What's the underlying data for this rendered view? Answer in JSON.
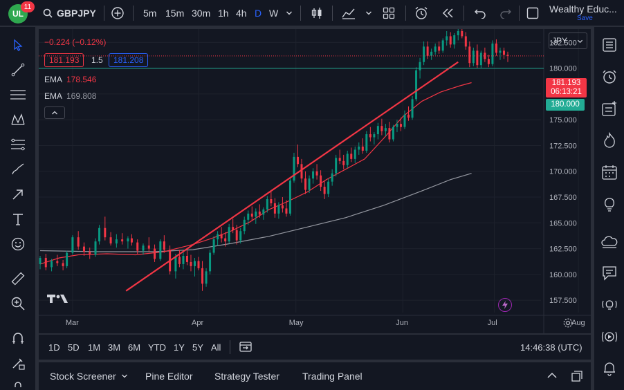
{
  "header": {
    "logo_text": "UL",
    "notification_count": "11",
    "symbol": "GBPJPY",
    "timeframes": [
      "5m",
      "15m",
      "30m",
      "1h",
      "4h",
      "D",
      "W"
    ],
    "active_timeframe": "D",
    "account_name": "Wealthy Educ...",
    "save_label": "Save"
  },
  "legend": {
    "change": "−0.224 (−0.12%)",
    "bid": "181.193",
    "spread": "1.5",
    "ask": "181.208",
    "ema1_label": "EMA",
    "ema1_value": "178.546",
    "ema2_label": "EMA",
    "ema2_value": "169.808"
  },
  "currency_selector": "JPY",
  "price_labels": {
    "last_price": "181.193",
    "countdown": "06:13:21",
    "hline_price": "180.000"
  },
  "colors": {
    "up": "#089981",
    "down": "#f23645",
    "ema_fast": "#f23645",
    "ema_slow": "#9598a1",
    "hline": "#22ab94",
    "trendline": "#f23645",
    "accent": "#2962ff"
  },
  "bottom_timeframes": [
    "1D",
    "5D",
    "1M",
    "3M",
    "6M",
    "YTD",
    "1Y",
    "5Y",
    "All"
  ],
  "clock": "14:46:38 (UTC)",
  "panel_tabs": [
    "Stock Screener",
    "Pine Editor",
    "Strategy Tester",
    "Trading Panel"
  ],
  "chart_data": {
    "type": "candlestick",
    "title": "GBPJPY",
    "ylabel": "",
    "xlabel": "",
    "ylim": [
      156.3,
      183.8
    ],
    "y_ticks": [
      "182.500",
      "180.000",
      "177.500",
      "175.000",
      "172.500",
      "170.000",
      "167.500",
      "165.000",
      "162.500",
      "160.000",
      "157.500"
    ],
    "x_ticks": [
      "Mar",
      "Apr",
      "May",
      "Jun",
      "Jul",
      "Aug"
    ],
    "horizontal_line": 180.0,
    "dotted_last_price": 181.193,
    "ema_fast_points": [
      [
        0,
        161.0
      ],
      [
        10,
        161.6
      ],
      [
        20,
        161.9
      ],
      [
        35,
        162.0
      ],
      [
        50,
        161.9
      ],
      [
        65,
        162.2
      ],
      [
        80,
        162.9
      ],
      [
        90,
        163.5
      ],
      [
        100,
        164.2
      ],
      [
        110,
        165.1
      ],
      [
        120,
        166.3
      ],
      [
        130,
        167.1
      ],
      [
        140,
        168.0
      ],
      [
        150,
        169.2
      ],
      [
        160,
        170.2
      ],
      [
        170,
        171.2
      ],
      [
        180,
        173.2
      ],
      [
        190,
        175.3
      ],
      [
        200,
        176.8
      ],
      [
        210,
        177.7
      ],
      [
        220,
        178.3
      ],
      [
        226,
        178.6
      ]
    ],
    "ema_slow_points": [
      [
        0,
        162.3
      ],
      [
        30,
        162.2
      ],
      [
        60,
        162.2
      ],
      [
        80,
        162.4
      ],
      [
        100,
        163.0
      ],
      [
        120,
        163.7
      ],
      [
        140,
        164.6
      ],
      [
        160,
        165.5
      ],
      [
        180,
        166.7
      ],
      [
        200,
        168.1
      ],
      [
        215,
        169.2
      ],
      [
        226,
        169.8
      ]
    ],
    "trendline": [
      [
        45,
        158.4
      ],
      [
        219,
        180.6
      ]
    ],
    "candles": [
      [
        161.0,
        161.8,
        160.5,
        161.6
      ],
      [
        161.6,
        162.0,
        160.4,
        160.7
      ],
      [
        160.7,
        161.5,
        160.3,
        161.3
      ],
      [
        161.3,
        161.9,
        160.8,
        161.1
      ],
      [
        161.1,
        161.4,
        160.4,
        160.8
      ],
      [
        160.8,
        162.3,
        160.6,
        162.1
      ],
      [
        162.1,
        163.8,
        161.9,
        163.6
      ],
      [
        163.6,
        164.2,
        162.4,
        162.7
      ],
      [
        162.7,
        163.1,
        161.8,
        162.2
      ],
      [
        162.2,
        162.6,
        161.5,
        161.9
      ],
      [
        161.9,
        163.5,
        161.7,
        163.2
      ],
      [
        163.2,
        164.8,
        162.9,
        164.5
      ],
      [
        164.5,
        165.6,
        163.3,
        163.6
      ],
      [
        163.6,
        164.1,
        162.8,
        163.0
      ],
      [
        163.0,
        163.9,
        162.6,
        163.4
      ],
      [
        163.4,
        164.0,
        162.9,
        163.2
      ],
      [
        163.2,
        163.7,
        162.5,
        163.5
      ],
      [
        163.5,
        163.9,
        162.8,
        163.1
      ],
      [
        163.1,
        163.4,
        162.0,
        162.3
      ],
      [
        162.3,
        163.0,
        161.9,
        162.8
      ],
      [
        162.8,
        163.6,
        162.2,
        162.5
      ],
      [
        162.5,
        162.9,
        161.2,
        161.5
      ],
      [
        161.5,
        163.4,
        161.3,
        163.2
      ],
      [
        163.2,
        163.8,
        162.1,
        162.4
      ],
      [
        162.4,
        162.8,
        160.0,
        160.3
      ],
      [
        160.3,
        162.0,
        159.6,
        161.7
      ],
      [
        161.7,
        162.4,
        160.7,
        161.0
      ],
      [
        161.0,
        162.2,
        160.5,
        161.8
      ],
      [
        161.8,
        162.3,
        160.9,
        161.2
      ],
      [
        161.2,
        161.9,
        160.3,
        160.8
      ],
      [
        160.8,
        161.6,
        159.8,
        161.3
      ],
      [
        161.3,
        161.7,
        160.4,
        160.6
      ],
      [
        160.6,
        161.3,
        158.4,
        159.1
      ],
      [
        159.1,
        160.6,
        158.8,
        160.3
      ],
      [
        160.3,
        162.4,
        160.0,
        162.1
      ],
      [
        162.1,
        163.7,
        161.9,
        163.4
      ],
      [
        163.4,
        164.2,
        162.8,
        163.9
      ],
      [
        163.9,
        164.6,
        163.1,
        163.5
      ],
      [
        163.5,
        164.1,
        162.7,
        163.2
      ],
      [
        163.2,
        164.9,
        163.0,
        164.6
      ],
      [
        164.6,
        165.4,
        164.0,
        164.3
      ],
      [
        164.3,
        164.8,
        162.9,
        163.3
      ],
      [
        163.3,
        164.5,
        163.0,
        164.2
      ],
      [
        164.2,
        165.6,
        163.9,
        165.3
      ],
      [
        165.3,
        166.2,
        164.8,
        165.9
      ],
      [
        165.9,
        166.6,
        165.2,
        165.6
      ],
      [
        165.6,
        166.4,
        164.9,
        166.1
      ],
      [
        166.1,
        166.8,
        165.5,
        165.8
      ],
      [
        165.8,
        166.5,
        165.3,
        166.3
      ],
      [
        166.3,
        167.6,
        166.0,
        167.3
      ],
      [
        167.3,
        168.0,
        166.6,
        166.9
      ],
      [
        166.9,
        167.4,
        165.5,
        165.9
      ],
      [
        165.9,
        167.0,
        165.4,
        166.7
      ],
      [
        166.7,
        167.5,
        166.0,
        166.4
      ],
      [
        166.4,
        167.2,
        165.6,
        165.9
      ],
      [
        165.9,
        169.4,
        165.7,
        169.1
      ],
      [
        169.1,
        171.8,
        168.9,
        171.4
      ],
      [
        171.4,
        172.6,
        170.4,
        170.7
      ],
      [
        170.7,
        171.2,
        168.9,
        169.3
      ],
      [
        169.3,
        170.0,
        167.8,
        168.2
      ],
      [
        168.2,
        169.6,
        167.9,
        169.3
      ],
      [
        169.3,
        170.3,
        168.8,
        170.0
      ],
      [
        170.0,
        170.7,
        169.2,
        169.6
      ],
      [
        169.6,
        170.1,
        168.1,
        168.5
      ],
      [
        168.5,
        169.1,
        167.3,
        167.8
      ],
      [
        167.8,
        169.3,
        167.5,
        169.0
      ],
      [
        169.0,
        170.2,
        168.6,
        169.8
      ],
      [
        169.8,
        171.6,
        169.5,
        171.3
      ],
      [
        171.3,
        172.1,
        170.7,
        171.0
      ],
      [
        171.0,
        171.6,
        170.2,
        170.6
      ],
      [
        170.6,
        172.0,
        170.3,
        171.7
      ],
      [
        171.7,
        172.3,
        170.9,
        171.2
      ],
      [
        171.2,
        172.4,
        170.8,
        172.1
      ],
      [
        172.1,
        172.8,
        171.6,
        172.4
      ],
      [
        172.4,
        173.2,
        171.7,
        172.0
      ],
      [
        172.0,
        173.9,
        171.8,
        173.6
      ],
      [
        173.6,
        174.3,
        172.9,
        173.3
      ],
      [
        173.3,
        173.8,
        172.6,
        173.6
      ],
      [
        173.6,
        174.7,
        173.1,
        174.4
      ],
      [
        174.4,
        175.1,
        173.5,
        173.9
      ],
      [
        173.9,
        174.6,
        173.4,
        174.2
      ],
      [
        174.2,
        174.8,
        172.8,
        173.1
      ],
      [
        173.1,
        174.5,
        172.9,
        174.3
      ],
      [
        174.3,
        175.0,
        173.8,
        174.6
      ],
      [
        174.6,
        175.2,
        173.9,
        174.3
      ],
      [
        174.3,
        175.9,
        174.1,
        175.5
      ],
      [
        175.5,
        176.3,
        174.9,
        175.2
      ],
      [
        175.2,
        177.3,
        175.0,
        177.0
      ],
      [
        177.0,
        180.1,
        176.8,
        179.8
      ],
      [
        179.8,
        181.0,
        179.0,
        180.6
      ],
      [
        180.6,
        182.6,
        180.3,
        182.1
      ],
      [
        182.1,
        182.6,
        180.9,
        181.2
      ],
      [
        181.2,
        181.9,
        180.8,
        181.6
      ],
      [
        181.6,
        182.4,
        181.3,
        182.1
      ],
      [
        182.1,
        182.6,
        181.4,
        181.7
      ],
      [
        181.7,
        182.9,
        181.5,
        182.7
      ],
      [
        182.7,
        183.6,
        182.2,
        183.1
      ],
      [
        183.1,
        183.5,
        182.0,
        182.3
      ],
      [
        182.3,
        183.4,
        181.9,
        183.2
      ],
      [
        183.2,
        183.8,
        182.7,
        183.6
      ],
      [
        183.6,
        183.9,
        182.9,
        183.1
      ],
      [
        183.1,
        183.5,
        181.8,
        182.1
      ],
      [
        182.1,
        182.6,
        180.1,
        180.5
      ],
      [
        180.5,
        182.0,
        180.2,
        181.7
      ],
      [
        181.7,
        182.3,
        180.0,
        180.3
      ],
      [
        180.3,
        181.7,
        180.0,
        181.5
      ],
      [
        181.5,
        182.0,
        180.6,
        180.9
      ],
      [
        180.9,
        181.3,
        180.1,
        180.4
      ],
      [
        180.4,
        182.7,
        180.2,
        182.4
      ],
      [
        182.4,
        182.8,
        181.2,
        181.5
      ],
      [
        181.5,
        182.0,
        180.8,
        181.7
      ],
      [
        181.7,
        182.0,
        180.9,
        181.3
      ],
      [
        181.3,
        181.6,
        180.6,
        181.19
      ]
    ],
    "time_points": [
      0,
      3,
      6,
      9,
      12,
      14,
      17,
      20,
      23,
      26,
      29,
      31,
      34,
      37,
      40,
      43,
      46,
      48,
      51,
      54,
      57,
      60,
      63,
      65,
      68,
      71,
      73,
      75,
      77,
      79,
      81,
      83,
      85,
      87,
      89,
      91,
      93,
      95,
      97,
      99,
      101,
      103,
      105,
      107,
      109,
      111,
      113,
      115,
      117,
      119,
      121,
      123,
      125,
      127,
      129,
      131,
      133,
      135,
      137,
      139,
      141,
      143,
      145,
      147,
      149,
      151,
      153,
      155,
      157,
      159,
      161,
      163,
      165,
      167,
      169,
      171,
      173,
      175,
      177,
      179,
      181,
      183,
      185,
      187,
      189,
      191,
      193,
      195,
      197,
      199,
      201,
      203,
      205,
      207,
      209,
      211,
      213,
      215,
      217,
      219,
      221,
      223,
      225,
      227,
      229,
      231,
      233,
      235,
      237,
      239,
      241,
      243,
      245
    ]
  }
}
